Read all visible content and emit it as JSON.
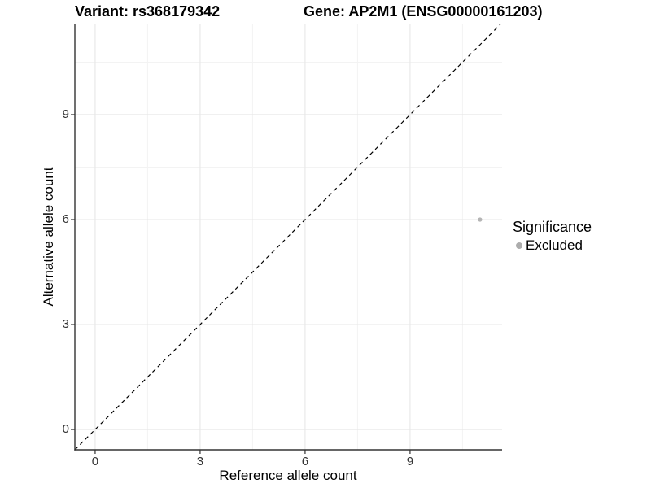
{
  "chart_data": {
    "type": "scatter",
    "title_left": "Variant: rs368179342",
    "title_right": "Gene: AP2M1 (ENSG00000161203)",
    "xlabel": "Reference allele count",
    "ylabel": "Alternative allele count",
    "xlim": [
      -0.58,
      11.63
    ],
    "ylim": [
      -0.58,
      11.58
    ],
    "x_ticks": [
      0,
      3,
      6,
      9
    ],
    "y_ticks": [
      0,
      3,
      6,
      9
    ],
    "x_minor_ticks": [
      1.5,
      4.5,
      7.5,
      10.5
    ],
    "y_minor_ticks": [
      1.5,
      4.5,
      7.5,
      10.5
    ],
    "grid": true,
    "points": [
      {
        "x": 11,
        "y": 6,
        "series": "Excluded"
      }
    ],
    "reference_line": {
      "type": "identity (y = x)",
      "style": "dashed",
      "color": "#000000"
    },
    "legend": {
      "title": "Significance",
      "position": "right",
      "items": [
        {
          "label": "Excluded",
          "color": "#adadad"
        }
      ]
    },
    "colors": {
      "point": "#b5b5b5",
      "grid_major": "#e7e7e7",
      "grid_minor": "#f3f3f3",
      "axis_line": "#333333",
      "tick_mark": "#333333",
      "tick_label": "#333333",
      "background": "#ffffff"
    }
  }
}
